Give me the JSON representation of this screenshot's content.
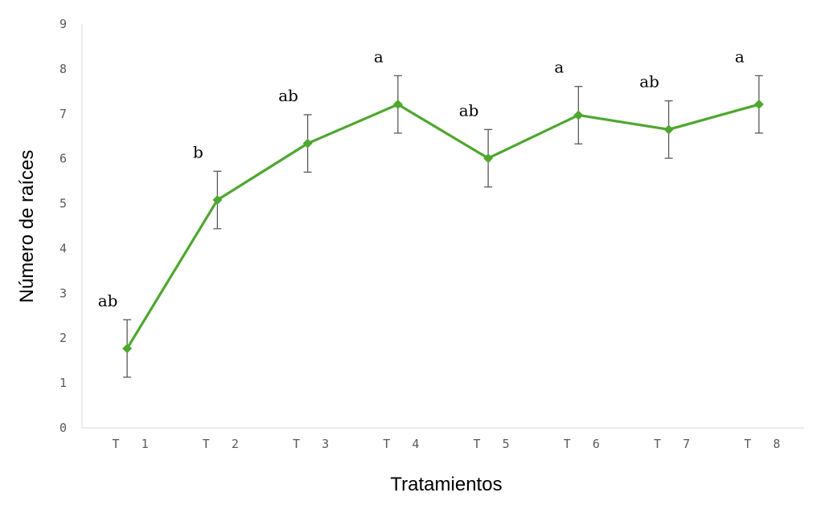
{
  "chart_data": {
    "type": "line",
    "title": "",
    "xlabel": "Tratamientos",
    "ylabel": "Número de raíces",
    "ylim": [
      0,
      9
    ],
    "yticks": [
      "0",
      "1",
      "2",
      "3",
      "4",
      "5",
      "6",
      "7",
      "8",
      "9"
    ],
    "grid": false,
    "categories": [
      "T 1",
      "T 2",
      "T 3",
      "T 4",
      "T 5",
      "T 6",
      "T 7",
      "T 8"
    ],
    "series": [
      {
        "values": [
          1.77,
          5.08,
          6.34,
          7.21,
          6.01,
          6.97,
          6.65,
          7.21
        ],
        "error": [
          0.64,
          0.64,
          0.64,
          0.64,
          0.64,
          0.64,
          0.64,
          0.64
        ],
        "color": "#4ea72e",
        "marker": "diamond"
      }
    ],
    "annotations": [
      "ab",
      "b",
      "ab",
      "a",
      "ab",
      "a",
      "ab",
      "a"
    ],
    "colors": {
      "axis": "#d9d9d9",
      "error_bar": "#595959"
    }
  }
}
